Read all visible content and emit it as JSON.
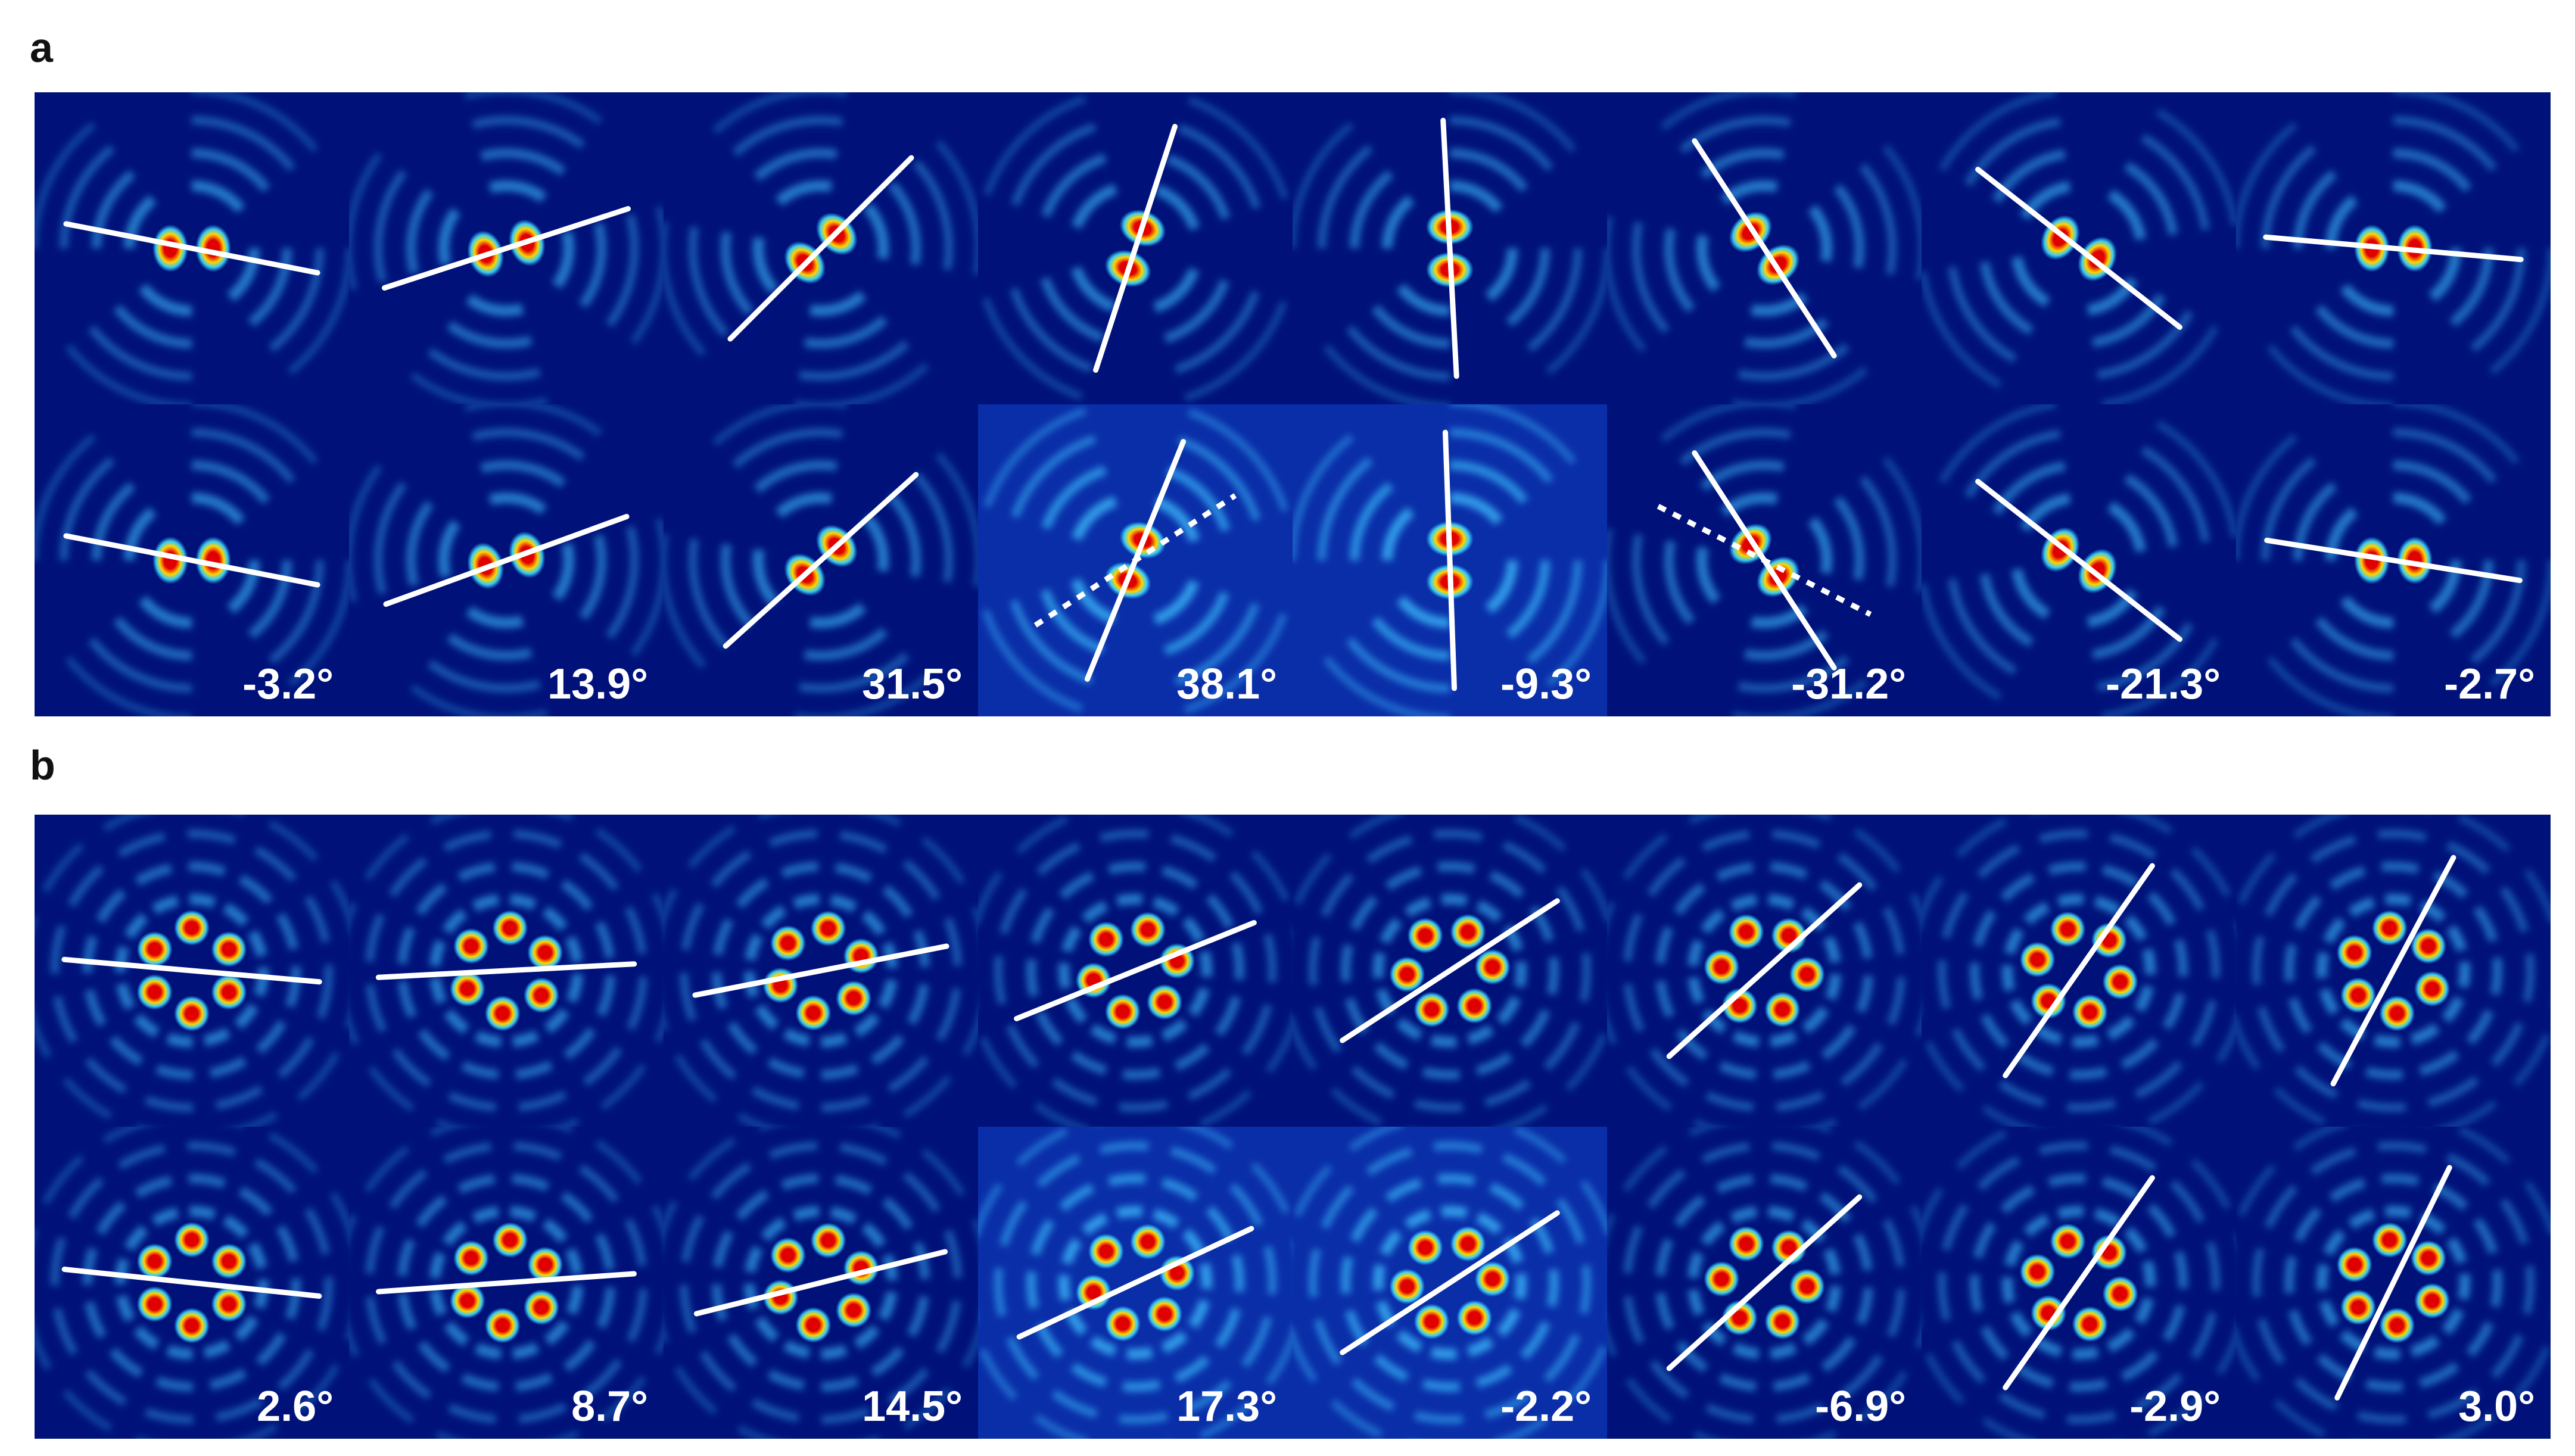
{
  "panels": [
    {
      "label": "a",
      "lobes": 2,
      "colors": {
        "background": "#00127a",
        "ring": "#3cc0ff",
        "lobe_core": "#e00000",
        "lobe_mid": "#ffd400",
        "line": "#ffffff"
      },
      "columns": [
        {
          "angle_label": "-3.2°",
          "top_line_angle": -11,
          "bottom_line_angle": -11,
          "orientation": 0,
          "bottom_dotted": false,
          "bottom_noisy": false
        },
        {
          "angle_label": "13.9°",
          "top_line_angle": 18,
          "bottom_line_angle": 20,
          "orientation": -15,
          "bottom_dotted": false,
          "bottom_noisy": false
        },
        {
          "angle_label": "31.5°",
          "top_line_angle": 45,
          "bottom_line_angle": 42,
          "orientation": -42,
          "bottom_dotted": false,
          "bottom_noisy": false
        },
        {
          "angle_label": "38.1°",
          "top_line_angle": 72,
          "bottom_line_angle": 68,
          "orientation": -70,
          "bottom_dotted": true,
          "dotted_angle": 33,
          "bottom_noisy": true
        },
        {
          "angle_label": "-9.3°",
          "top_line_angle": -87,
          "bottom_line_angle": -88,
          "orientation": -90,
          "bottom_dotted": false,
          "bottom_noisy": true
        },
        {
          "angle_label": "-31.2°",
          "top_line_angle": -57,
          "bottom_line_angle": -57,
          "orientation": -130,
          "bottom_dotted": true,
          "dotted_angle": -27,
          "bottom_noisy": false
        },
        {
          "angle_label": "-21.3°",
          "top_line_angle": -38,
          "bottom_line_angle": -38,
          "orientation": -150,
          "bottom_dotted": false,
          "bottom_noisy": false
        },
        {
          "angle_label": "-2.7°",
          "top_line_angle": -5,
          "bottom_line_angle": -9,
          "orientation": 0,
          "bottom_dotted": false,
          "bottom_noisy": false
        }
      ]
    },
    {
      "label": "b",
      "lobes": 6,
      "colors": {
        "background": "#00127a",
        "ring": "#3cc0ff",
        "lobe_core": "#e00000",
        "lobe_mid": "#ffd400",
        "line": "#ffffff"
      },
      "columns": [
        {
          "angle_label": "2.6°",
          "top_line_angle": -5,
          "bottom_line_angle": -6,
          "orientation": 0,
          "bottom_noisy": false
        },
        {
          "angle_label": "8.7°",
          "top_line_angle": 3,
          "bottom_line_angle": 4,
          "orientation": 5,
          "bottom_noisy": false
        },
        {
          "angle_label": "14.5°",
          "top_line_angle": 11,
          "bottom_line_angle": 14,
          "orientation": 10,
          "bottom_noisy": false
        },
        {
          "angle_label": "17.3°",
          "top_line_angle": 22,
          "bottom_line_angle": 25,
          "orientation": 17,
          "bottom_noisy": true
        },
        {
          "angle_label": "-2.2°",
          "top_line_angle": 33,
          "bottom_line_angle": 33,
          "orientation": 25,
          "bottom_noisy": true
        },
        {
          "angle_label": "-6.9°",
          "top_line_angle": 42,
          "bottom_line_angle": 42,
          "orientation": 35,
          "bottom_noisy": false
        },
        {
          "angle_label": "-2.9°",
          "top_line_angle": 55,
          "bottom_line_angle": 55,
          "orientation": 45,
          "bottom_noisy": false
        },
        {
          "angle_label": "3.0°",
          "top_line_angle": 62,
          "bottom_line_angle": 64,
          "orientation": 55,
          "bottom_noisy": false
        }
      ]
    }
  ]
}
